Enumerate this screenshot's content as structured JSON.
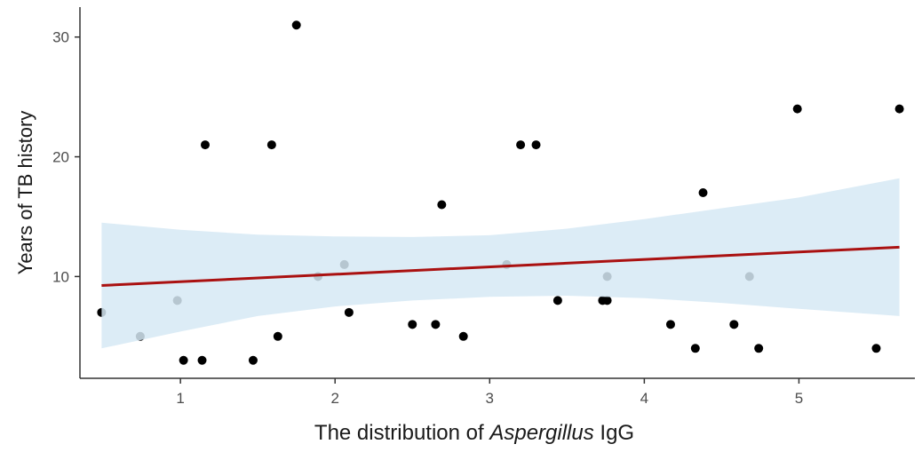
{
  "chart_data": {
    "type": "scatter",
    "title": "",
    "xlabel": {
      "prefix": "The distribution of ",
      "italic": "Aspergillus",
      "suffix": " IgG"
    },
    "ylabel": "Years of TB history",
    "xlim": [
      0.35,
      5.75
    ],
    "ylim": [
      1.5,
      32.5
    ],
    "x_ticks": [
      1,
      2,
      3,
      4,
      5
    ],
    "y_ticks": [
      10,
      20,
      30
    ],
    "grid": false,
    "legend": "none",
    "colors": {
      "points": "#000000",
      "line": "#aa1111",
      "band": "#d6e9f5",
      "axis": "#333333"
    },
    "points": [
      {
        "x": 0.49,
        "y": 7
      },
      {
        "x": 0.74,
        "y": 5
      },
      {
        "x": 0.98,
        "y": 8
      },
      {
        "x": 1.02,
        "y": 3
      },
      {
        "x": 1.14,
        "y": 3
      },
      {
        "x": 1.16,
        "y": 21
      },
      {
        "x": 1.47,
        "y": 3
      },
      {
        "x": 1.59,
        "y": 21
      },
      {
        "x": 1.63,
        "y": 5
      },
      {
        "x": 1.75,
        "y": 31
      },
      {
        "x": 1.89,
        "y": 10
      },
      {
        "x": 2.06,
        "y": 11
      },
      {
        "x": 2.09,
        "y": 7
      },
      {
        "x": 2.5,
        "y": 6
      },
      {
        "x": 2.65,
        "y": 6
      },
      {
        "x": 2.69,
        "y": 16
      },
      {
        "x": 2.83,
        "y": 5
      },
      {
        "x": 3.11,
        "y": 11
      },
      {
        "x": 3.2,
        "y": 21
      },
      {
        "x": 3.3,
        "y": 21
      },
      {
        "x": 3.44,
        "y": 8
      },
      {
        "x": 3.73,
        "y": 8
      },
      {
        "x": 3.76,
        "y": 8
      },
      {
        "x": 3.76,
        "y": 10
      },
      {
        "x": 4.17,
        "y": 6
      },
      {
        "x": 4.33,
        "y": 4
      },
      {
        "x": 4.38,
        "y": 17
      },
      {
        "x": 4.58,
        "y": 6
      },
      {
        "x": 4.68,
        "y": 10
      },
      {
        "x": 4.74,
        "y": 4
      },
      {
        "x": 4.99,
        "y": 24
      },
      {
        "x": 5.5,
        "y": 4
      },
      {
        "x": 5.65,
        "y": 24
      }
    ],
    "trend_line": {
      "x": [
        0.49,
        5.65
      ],
      "y": [
        9.25,
        12.45
      ]
    },
    "confidence_band": {
      "x": [
        0.49,
        1.0,
        1.5,
        2.0,
        2.5,
        3.0,
        3.5,
        4.0,
        4.5,
        5.0,
        5.65
      ],
      "upper": [
        14.5,
        13.9,
        13.5,
        13.35,
        13.3,
        13.45,
        14.0,
        14.8,
        15.7,
        16.6,
        18.2
      ],
      "lower": [
        4.0,
        5.4,
        6.7,
        7.5,
        8.0,
        8.3,
        8.4,
        8.2,
        7.8,
        7.3,
        6.7
      ]
    }
  }
}
